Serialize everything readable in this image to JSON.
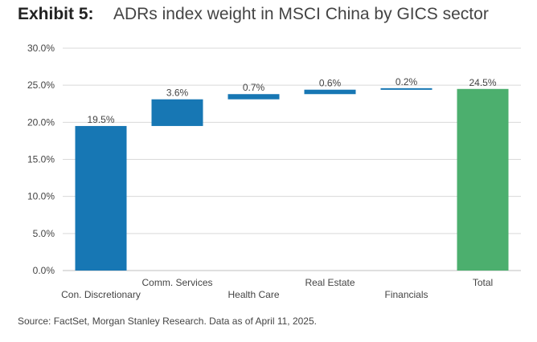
{
  "header": {
    "exhibit": "Exhibit 5:",
    "title": "ADRs index weight in MSCI China by GICS sector"
  },
  "footer": {
    "source": "Source: FactSet, Morgan Stanley Research. Data as of April 11, 2025."
  },
  "colors": {
    "sector_bar": "#1777b4",
    "total_bar": "#4caf6e",
    "grid": "#d9d9d9",
    "axis_text": "#444444"
  },
  "chart_data": {
    "type": "bar",
    "subtype": "waterfall",
    "title": "ADRs index weight in MSCI China by GICS sector",
    "xlabel": "",
    "ylabel": "",
    "ylim": [
      0,
      30
    ],
    "yticks": [
      "0.0%",
      "5.0%",
      "10.0%",
      "15.0%",
      "20.0%",
      "25.0%",
      "30.0%"
    ],
    "grid": true,
    "legend": "none",
    "categories": [
      "Con. Discretionary",
      "Comm. Services",
      "Health Care",
      "Real Estate",
      "Financials",
      "Total"
    ],
    "values": [
      19.5,
      3.6,
      0.7,
      0.6,
      0.2,
      24.5
    ],
    "labels": [
      "19.5%",
      "3.6%",
      "0.7%",
      "0.6%",
      "0.2%",
      "24.5%"
    ],
    "is_total": [
      false,
      false,
      false,
      false,
      false,
      true
    ]
  }
}
